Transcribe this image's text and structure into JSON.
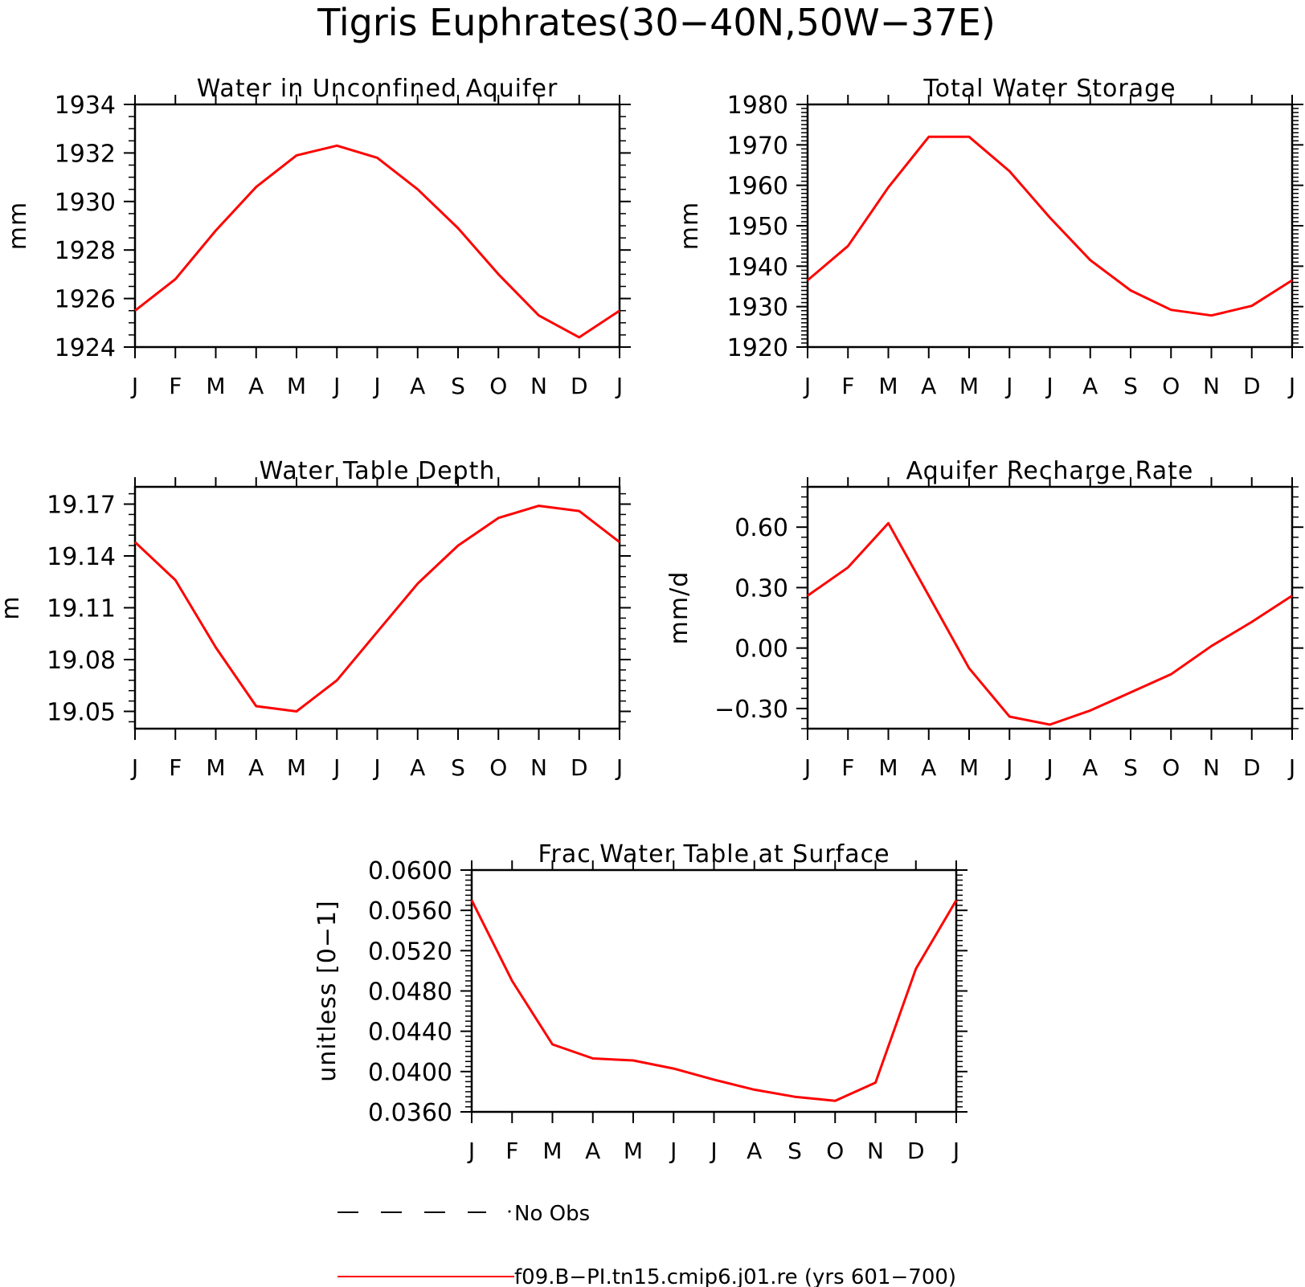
{
  "figure": {
    "title": "Tigris Euphrates(30−40N,50W−37E)",
    "series_color": "#ff0000",
    "legend": {
      "obs_label": "No Obs",
      "model_label": "f09.B−PI.tn15.cmip6.j01.re (yrs 601−700)"
    }
  },
  "chart_data": [
    {
      "type": "line",
      "title": "Water in Unconfined Aquifer",
      "ylabel": "mm",
      "categories": [
        "J",
        "F",
        "M",
        "A",
        "M",
        "J",
        "J",
        "A",
        "S",
        "O",
        "N",
        "D",
        "J"
      ],
      "ylim": [
        1924,
        1934
      ],
      "yticks": [
        "1924",
        "1926",
        "1928",
        "1930",
        "1932",
        "1934"
      ],
      "series": [
        {
          "values": [
            1925.5,
            1926.8,
            1928.8,
            1930.6,
            1931.9,
            1932.3,
            1931.8,
            1930.5,
            1928.9,
            1927.0,
            1925.3,
            1924.4,
            1925.5
          ]
        }
      ]
    },
    {
      "type": "line",
      "title": "Total Water Storage",
      "ylabel": "mm",
      "categories": [
        "J",
        "F",
        "M",
        "A",
        "M",
        "J",
        "J",
        "A",
        "S",
        "O",
        "N",
        "D",
        "J"
      ],
      "ylim": [
        1920,
        1980
      ],
      "yticks": [
        "1920",
        "1930",
        "1940",
        "1950",
        "1960",
        "1970",
        "1980"
      ],
      "series": [
        {
          "values": [
            1936.5,
            1945.0,
            1959.5,
            1972.0,
            1972.0,
            1963.5,
            1952.0,
            1941.5,
            1934.0,
            1929.2,
            1927.8,
            1930.2,
            1936.5
          ]
        }
      ]
    },
    {
      "type": "line",
      "title": "Water Table Depth",
      "ylabel": "m",
      "categories": [
        "J",
        "F",
        "M",
        "A",
        "M",
        "J",
        "J",
        "A",
        "S",
        "O",
        "N",
        "D",
        "J"
      ],
      "ylim": [
        19.04,
        19.18
      ],
      "yticks": [
        "19.05",
        "19.08",
        "19.11",
        "19.14",
        "19.17"
      ],
      "series": [
        {
          "values": [
            19.148,
            19.126,
            19.087,
            19.053,
            19.05,
            19.068,
            19.096,
            19.124,
            19.146,
            19.162,
            19.169,
            19.166,
            19.148
          ]
        }
      ]
    },
    {
      "type": "line",
      "title": "Aquifer Recharge Rate",
      "ylabel": "mm/d",
      "categories": [
        "J",
        "F",
        "M",
        "A",
        "M",
        "J",
        "J",
        "A",
        "S",
        "O",
        "N",
        "D",
        "J"
      ],
      "ylim": [
        -0.4,
        0.8
      ],
      "yticks": [
        "−0.30",
        "0.00",
        "0.30",
        "0.60"
      ],
      "series": [
        {
          "values": [
            0.26,
            0.4,
            0.62,
            0.26,
            -0.1,
            -0.34,
            -0.38,
            -0.31,
            -0.22,
            -0.13,
            0.01,
            0.13,
            0.26
          ]
        }
      ]
    },
    {
      "type": "line",
      "title": "Frac Water Table at Surface",
      "ylabel": "unitless [0−1]",
      "categories": [
        "J",
        "F",
        "M",
        "A",
        "M",
        "J",
        "J",
        "A",
        "S",
        "O",
        "N",
        "D",
        "J"
      ],
      "ylim": [
        0.036,
        0.06
      ],
      "yticks": [
        "0.0360",
        "0.0400",
        "0.0440",
        "0.0480",
        "0.0520",
        "0.0560",
        "0.0600"
      ],
      "series": [
        {
          "values": [
            0.057,
            0.049,
            0.0427,
            0.0413,
            0.0411,
            0.0403,
            0.0392,
            0.0382,
            0.0375,
            0.0371,
            0.0389,
            0.0502,
            0.057
          ]
        }
      ]
    }
  ]
}
